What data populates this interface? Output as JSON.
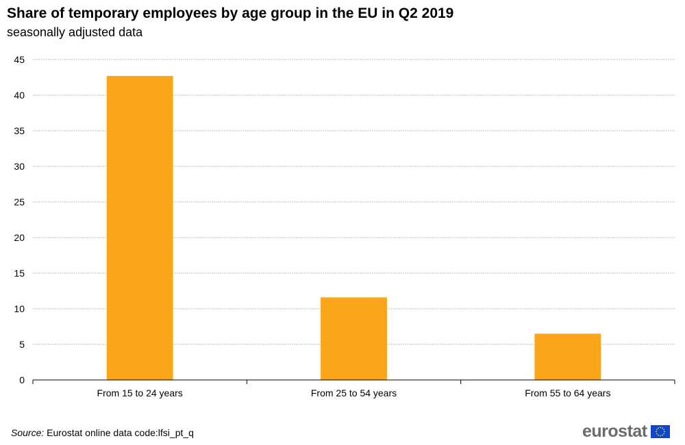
{
  "chart_data": {
    "type": "bar",
    "title": "Share of temporary employees by age group in the EU in Q2 2019",
    "subtitle": "seasonally adjusted data",
    "categories": [
      "From 15 to 24 years",
      "From 25 to 54 years",
      "From 55 to 64 years"
    ],
    "series": [
      {
        "values": [
          42.7,
          11.6,
          6.5
        ],
        "color": "#FAA51A"
      }
    ],
    "xlabel": "",
    "ylabel": "",
    "ylim": [
      0,
      45
    ],
    "yticks": [
      0,
      5,
      10,
      15,
      20,
      25,
      30,
      35,
      40,
      45
    ],
    "grid": true,
    "legend": "none"
  },
  "source": {
    "label": "Source:",
    "text": "Eurostat online data code:lfsi_pt_q"
  },
  "logo": {
    "text": "eurostat",
    "flag_icon": "eu-flag-icon",
    "flag_color": "#0E47CB",
    "star_color": "#FFDD00"
  }
}
